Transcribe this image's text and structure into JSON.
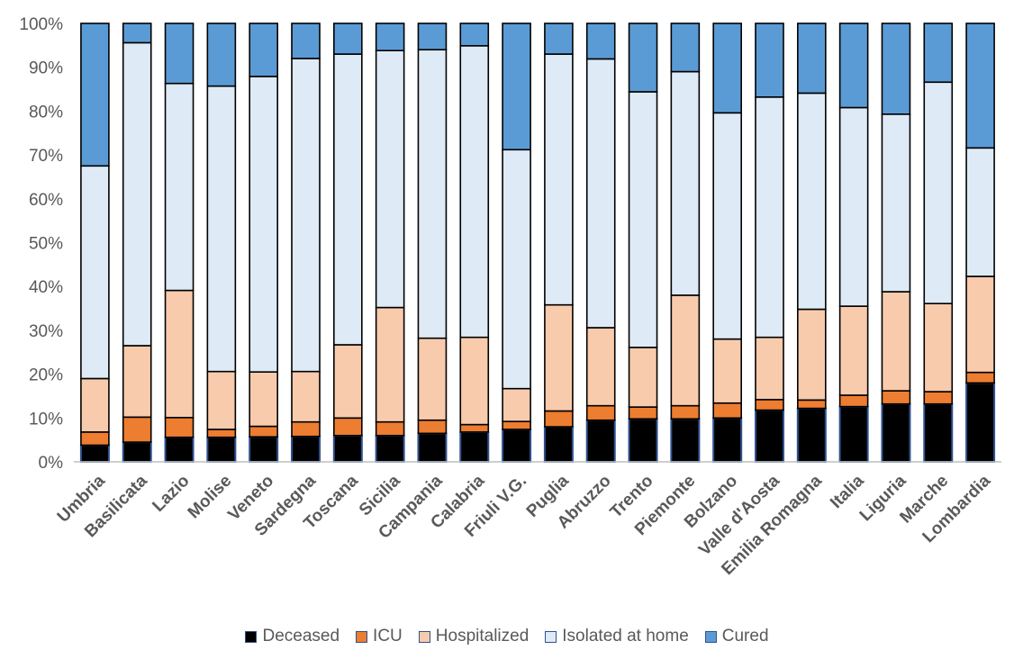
{
  "chart_data": {
    "type": "bar",
    "stacked": true,
    "percent_stacked": true,
    "title": "",
    "xlabel": "",
    "ylabel": "",
    "ylim": [
      0,
      100
    ],
    "yticks": [
      "0%",
      "10%",
      "20%",
      "30%",
      "40%",
      "50%",
      "60%",
      "70%",
      "80%",
      "90%",
      "100%"
    ],
    "grid": false,
    "legend_position": "bottom",
    "categories": [
      "Umbria",
      "Basilicata",
      "Lazio",
      "Molise",
      "Veneto",
      "Sardegna",
      "Toscana",
      "Sicilia",
      "Campania",
      "Calabria",
      "Friuli V.G.",
      "Puglia",
      "Abruzzo",
      "Trento",
      "Piemonte",
      "Bolzano",
      "Valle d'Aosta",
      "Emilia Romagna",
      "Italia",
      "Liguria",
      "Marche",
      "Lombardia"
    ],
    "series": [
      {
        "name": "Deceased",
        "color": "#000000",
        "values": [
          3.8,
          4.5,
          5.6,
          5.6,
          5.7,
          5.8,
          6.0,
          6.0,
          6.5,
          6.8,
          7.4,
          8.0,
          9.5,
          9.8,
          9.8,
          10.0,
          11.8,
          12.2,
          12.6,
          13.2,
          13.2,
          18.0
        ]
      },
      {
        "name": "ICU",
        "color": "#ed7d31",
        "values": [
          3.0,
          5.7,
          4.5,
          1.8,
          2.4,
          3.3,
          4.0,
          3.1,
          3.0,
          1.7,
          1.8,
          3.6,
          3.3,
          2.7,
          3.0,
          3.4,
          2.4,
          1.9,
          2.6,
          3.0,
          2.8,
          2.4
        ]
      },
      {
        "name": "Hospitalized",
        "color": "#f8cbad",
        "values": [
          12.2,
          16.3,
          29.0,
          13.2,
          12.4,
          11.5,
          16.7,
          26.1,
          18.7,
          19.9,
          7.5,
          24.2,
          17.8,
          13.6,
          25.2,
          14.6,
          14.2,
          20.7,
          20.3,
          22.6,
          20.1,
          21.9
        ]
      },
      {
        "name": "Isolated at home",
        "color": "#deebf7",
        "values": [
          48.5,
          69.1,
          47.2,
          65.1,
          67.4,
          71.4,
          66.3,
          58.6,
          65.8,
          66.5,
          54.5,
          57.2,
          61.3,
          58.3,
          51.0,
          51.6,
          54.8,
          49.3,
          45.3,
          40.5,
          50.5,
          29.3
        ]
      },
      {
        "name": "Cured",
        "color": "#5b9bd5",
        "values": [
          32.5,
          4.4,
          13.7,
          14.3,
          12.1,
          8.0,
          7.0,
          6.2,
          6.0,
          5.1,
          28.8,
          7.0,
          8.1,
          15.6,
          11.0,
          20.4,
          16.8,
          15.9,
          19.2,
          20.7,
          13.4,
          28.4
        ]
      }
    ]
  }
}
